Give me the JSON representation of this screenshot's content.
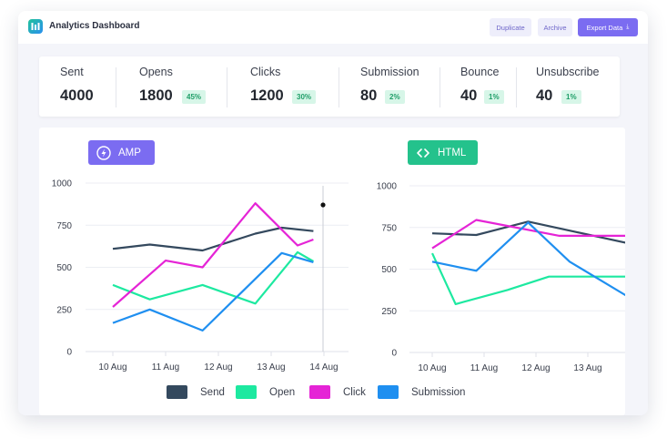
{
  "app": {
    "title": "Analytics Dashboard"
  },
  "toolbar": {
    "duplicate_label": "Duplicate",
    "archive_label": "Archive",
    "export_label": "Export Data"
  },
  "stats": [
    {
      "label": "Sent",
      "value": "4000",
      "badge": ""
    },
    {
      "label": "Opens",
      "value": "1800",
      "badge": "45%"
    },
    {
      "label": "Clicks",
      "value": "1200",
      "badge": "30%"
    },
    {
      "label": "Submission",
      "value": "80",
      "badge": "2%"
    },
    {
      "label": "Bounce",
      "value": "40",
      "badge": "1%"
    },
    {
      "label": "Unsubscribe",
      "value": "40",
      "badge": "1%"
    }
  ],
  "colors": {
    "accent": "#7b6cf1",
    "send": "#34495e",
    "open": "#1de9a0",
    "click": "#e524d6",
    "submission": "#1f8ff0",
    "badge_bg": "#d7f6e8",
    "badge_text": "#1f9e68",
    "html_chip": "#24c28c"
  },
  "legend": [
    {
      "key": "send",
      "label": "Send"
    },
    {
      "key": "open",
      "label": "Open"
    },
    {
      "key": "click",
      "label": "Click"
    },
    {
      "key": "submission",
      "label": "Submission"
    }
  ],
  "chart_data": [
    {
      "type": "line",
      "title": "AMP",
      "categories": [
        "10 Aug",
        "11 Aug",
        "12 Aug",
        "13 Aug",
        "14 Aug"
      ],
      "ylim": [
        0,
        1000
      ],
      "yticks": [
        0,
        250,
        500,
        750,
        1000
      ],
      "grid": true,
      "legend_position": "bottom",
      "series": [
        {
          "name": "Send",
          "key": "send",
          "points": [
            [
              0,
              610
            ],
            [
              0.7,
              635
            ],
            [
              1.7,
              600
            ],
            [
              2.7,
              700
            ],
            [
              3.2,
              735
            ],
            [
              3.8,
              715
            ]
          ]
        },
        {
          "name": "Open",
          "key": "open",
          "points": [
            [
              0,
              395
            ],
            [
              0.7,
              310
            ],
            [
              1.7,
              395
            ],
            [
              2.7,
              285
            ],
            [
              3.5,
              590
            ],
            [
              3.8,
              535
            ]
          ]
        },
        {
          "name": "Click",
          "key": "click",
          "points": [
            [
              0,
              265
            ],
            [
              1.0,
              540
            ],
            [
              1.7,
              500
            ],
            [
              2.7,
              880
            ],
            [
              3.5,
              630
            ],
            [
              3.8,
              665
            ]
          ]
        },
        {
          "name": "Submission",
          "key": "submission",
          "points": [
            [
              0,
              170
            ],
            [
              0.7,
              250
            ],
            [
              1.7,
              125
            ],
            [
              3.2,
              585
            ],
            [
              3.8,
              530
            ]
          ]
        }
      ]
    },
    {
      "type": "line",
      "title": "HTML",
      "categories": [
        "10 Aug",
        "11 Aug",
        "12 Aug",
        "13 Aug"
      ],
      "ylim": [
        0,
        1000
      ],
      "yticks": [
        0,
        250,
        500,
        750,
        1000
      ],
      "grid": true,
      "legend_position": "bottom",
      "series": [
        {
          "name": "Send",
          "key": "send",
          "points": [
            [
              0,
              715
            ],
            [
              0.85,
              705
            ],
            [
              1.85,
              785
            ],
            [
              3.85,
              650
            ]
          ]
        },
        {
          "name": "Open",
          "key": "open",
          "points": [
            [
              0,
              595
            ],
            [
              0.45,
              290
            ],
            [
              1.45,
              375
            ],
            [
              2.25,
              455
            ],
            [
              3.85,
              455
            ]
          ]
        },
        {
          "name": "Click",
          "key": "click",
          "points": [
            [
              0,
              625
            ],
            [
              0.85,
              795
            ],
            [
              2.45,
              700
            ],
            [
              3.85,
              700
            ]
          ]
        },
        {
          "name": "Submission",
          "key": "submission",
          "points": [
            [
              0,
              545
            ],
            [
              0.85,
              490
            ],
            [
              1.85,
              780
            ],
            [
              2.65,
              545
            ],
            [
              3.85,
              320
            ]
          ]
        }
      ]
    }
  ]
}
